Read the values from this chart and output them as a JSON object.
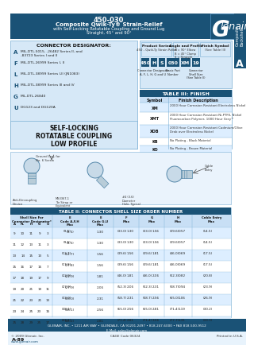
{
  "title_line1": "450-030",
  "title_line2": "Composite Qwik-Ty® Strain-Relief",
  "title_line3": "with Self-Locking Rotatable Coupling and Ground Lug",
  "title_line4": "Straight, 45° and 90°",
  "header_bg": "#1a5276",
  "header_text_color": "#ffffff",
  "light_blue_bg": "#d6e8f7",
  "table_header_bg": "#1a5276",
  "table_row_alt": "#ddeeff",
  "table_row_white": "#ffffff",
  "border_color": "#7aafd4",
  "connector_designator_labels": [
    "A",
    "F",
    "L",
    "H",
    "G",
    "U"
  ],
  "connector_designator_values": [
    "MIL-DTL-5015, -26482 Series II, and\n-83723 Series I and II",
    "MIL-DTL-26999 Series I, II",
    "MIL-DTL-38999 Series I,II (JN1083)",
    "MIL-DTL-38999 Series III and IV",
    "MIL-DTL-26840",
    "DG123 and DG120A"
  ],
  "self_locking": "SELF-LOCKING",
  "rotatable": "ROTATABLE COUPLING",
  "low_profile": "LOW PROFILE",
  "finish_table_title": "TABLE III: FINISH",
  "finish_symbols": [
    "XM",
    "XMT",
    "XOB",
    "KB",
    "KO"
  ],
  "finish_descriptions": [
    "2000 Hour Corrosion Resistant Electroless Nickel",
    "2000 Hour Corrosion Resistant Ni-PTFE, Nickel\nFluorocarbon Polymer, 1000 Hour Grey™",
    "2000 Hour Corrosion Resistant Cadmium/Olive\nDrab over Electroless Nickel",
    "No Plating - Black Material",
    "No Plating - Brown Material"
  ],
  "shell_table_title": "TABLE II: CONNECTOR SHELL SIZE ORDER NUMBER",
  "pn_parts": [
    "450",
    "H",
    "S",
    "030",
    "XM",
    "19"
  ],
  "pn_labels": [
    "Connector Designator\nA, F, L, H, G and U",
    "Basic Part\nNumber",
    "Connector\nShell Size\n(See Table II)"
  ],
  "product_series_label": "Product Series",
  "product_series_val": "450 - Qwik-Ty Strain Relief",
  "angle_profile_label": "Angle and Profile",
  "angle_profile_vals": "A = 90° Elbow\nB = 45° Clamp\nS = Straight",
  "finish_symbol_label": "Finish Symbol",
  "finish_symbol_val": "(See Table III)",
  "shell_rows": [
    [
      "9",
      "10",
      "11",
      "9",
      "3",
      "(9.5)",
      "1.30",
      "(33.0)",
      "1.30",
      "(33.0)",
      "1.56",
      "(39.6)",
      "0.57",
      "(14.5)"
    ],
    [
      "11",
      "12",
      "13",
      "11",
      "3",
      "(9.5)",
      "1.30",
      "(33.0)",
      "1.30",
      "(33.0)",
      "1.56",
      "(39.6)",
      "0.57",
      "(14.5)"
    ],
    [
      "13",
      "14",
      "15",
      "13",
      "5",
      "(12.7)",
      "1.56",
      "(39.6)",
      "1.56",
      "(39.6)",
      "1.81",
      "(46.0)",
      "0.69",
      "(17.5)"
    ],
    [
      "15",
      "16",
      "17",
      "15",
      "7",
      "(17.8)",
      "1.56",
      "(39.6)",
      "1.56",
      "(39.6)",
      "1.81",
      "(46.0)",
      "0.69",
      "(17.5)"
    ],
    [
      "17",
      "18",
      "19",
      "17",
      "9",
      "(22.9)",
      "1.81",
      "(46.0)",
      "1.81",
      "(46.0)",
      "2.06",
      "(52.3)",
      "0.82",
      "(20.8)"
    ],
    [
      "19",
      "20",
      "21",
      "19",
      "11",
      "(27.9)",
      "2.06",
      "(52.3)",
      "2.06",
      "(52.3)",
      "2.31",
      "(58.7)",
      "0.94",
      "(23.9)"
    ],
    [
      "21",
      "22",
      "23",
      "21",
      "13",
      "(33.0)",
      "2.31",
      "(58.7)",
      "2.31",
      "(58.7)",
      "2.56",
      "(65.0)",
      "1.06",
      "(26.9)"
    ],
    [
      "23",
      "24",
      "25",
      "23",
      "15",
      "(38.1)",
      "2.56",
      "(65.0)",
      "2.56",
      "(65.0)",
      "2.81",
      "(71.4)",
      "1.19",
      "(30.2)"
    ],
    [
      "25",
      "28",
      "29",
      "25",
      "17",
      "(43.2)",
      "2.81",
      "(71.4)",
      "2.81",
      "(71.4)",
      "3.06",
      "(77.7)",
      "1.31",
      "(33.3)"
    ]
  ],
  "footer_copyright": "© 2009 Glenair, Inc.",
  "footer_url": "www.glenair.com",
  "footer_cage": "CAGE Code 06324",
  "footer_printed": "Printed in U.S.A.",
  "footer_address": "GLENAIR, INC. • 1211 AIR WAY • GLENDALE, CA 91201-2497 • 818-247-6000 • FAX 818-500-9512",
  "footer_email": "E-Mail: sales@glenair.com",
  "page_ref": "A-89",
  "side_tab_text": "Composite\nBackshells",
  "side_tab_letter": "A",
  "bg_color": "#f5f5f5"
}
